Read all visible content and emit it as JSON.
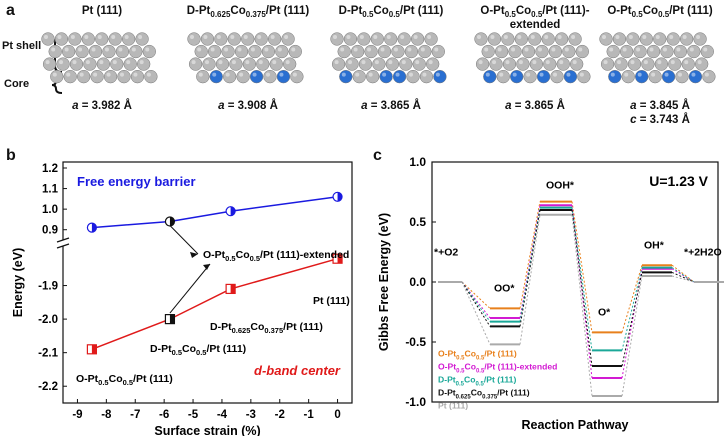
{
  "panels": {
    "a": "a",
    "b": "b",
    "c": "c"
  },
  "panel_a": {
    "shell_label": "Pt shell",
    "core_label": "Core",
    "colors": {
      "pt": "#b8b8b8",
      "co": "#2a6fd1"
    },
    "structures": [
      {
        "title": "Pt (111)",
        "lattice": [
          "a = 3.982 Å"
        ],
        "co_pattern": "none"
      },
      {
        "title": "D-Pt0.625Co0.375/Pt (111)",
        "lattice": [
          "a = 3.908 Å"
        ],
        "co_pattern": "sparse"
      },
      {
        "title": "D-Pt0.5Co0.5/Pt (111)",
        "lattice": [
          "a = 3.865 Å"
        ],
        "co_pattern": "half"
      },
      {
        "title": "O-Pt0.5Co0.5/Pt (111)-extended",
        "lattice": [
          "a = 3.865 Å"
        ],
        "co_pattern": "ordered"
      },
      {
        "title": "O-Pt0.5Co0.5/Pt (111)",
        "lattice": [
          "a = 3.845 Å",
          "c = 3.743 Å"
        ],
        "co_pattern": "ordered"
      }
    ]
  },
  "chart_data": [
    {
      "type": "scatter",
      "xlabel": "Surface strain (%)",
      "ylabel": "Energy (eV)",
      "xlim": [
        -9.5,
        0.5
      ],
      "xticks": [
        "-9",
        "-8",
        "-7",
        "-6",
        "-5",
        "-4",
        "-3",
        "-2",
        "-1",
        "0"
      ],
      "upper_yticks": [
        "0.9",
        "1.0",
        "1.1",
        "1.2"
      ],
      "lower_yticks": [
        "-2.2",
        "-2.1",
        "-2.0",
        "-1.9"
      ],
      "series": [
        {
          "name": "Free energy barrier",
          "color": "#1a1ae0",
          "x": [
            -8.5,
            -5.8,
            -3.7,
            0
          ],
          "y": [
            0.91,
            0.94,
            0.99,
            1.06
          ]
        },
        {
          "name": "d-band center",
          "color": "#e01a1a",
          "x": [
            -8.5,
            -5.8,
            -3.7,
            0
          ],
          "y": [
            -2.09,
            -2.0,
            -1.91,
            -1.82
          ]
        }
      ],
      "annotations": [
        "O-Pt0.5Co0.5/Pt (111)-extended",
        "Pt (111)",
        "D-Pt0.625Co0.375/Pt (111)",
        "D-Pt0.5Co0.5/Pt (111)",
        "O-Pt0.5Co0.5/Pt (111)"
      ],
      "legend_upper": "Free energy barrier",
      "legend_lower": "d-band center"
    },
    {
      "type": "line",
      "xlabel": "Reaction Pathway",
      "ylabel": "Gibbs Free Energy  (eV)",
      "ylim": [
        -1.0,
        1.0
      ],
      "yticks": [
        "-1.0",
        "-0.5",
        "0.0",
        "0.5",
        "1.0"
      ],
      "condition": "U=1.23 V",
      "steps": [
        "*+O2",
        "OO*",
        "OOH*",
        "O*",
        "OH*",
        "*+2H2O"
      ],
      "series": [
        {
          "name": "O-Pt0.5Co0.5/Pt (111)",
          "color": "#e8801c",
          "values": [
            0,
            -0.22,
            0.67,
            -0.42,
            0.14,
            0
          ]
        },
        {
          "name": "O-Pt0.5Co0.5/Pt (111)-extended",
          "color": "#d21ad2",
          "values": [
            0,
            -0.3,
            0.64,
            -0.8,
            0.11,
            0
          ]
        },
        {
          "name": "D-Pt0.5Co0.5/Pt (111)",
          "color": "#1aa898",
          "values": [
            0,
            -0.33,
            0.62,
            -0.57,
            0.12,
            0
          ]
        },
        {
          "name": "D-Pt0.625Co0.375/Pt (111)",
          "color": "#111111",
          "values": [
            0,
            -0.37,
            0.6,
            -0.7,
            0.08,
            0
          ]
        },
        {
          "name": "Pt (111)",
          "color": "#aaaaaa",
          "values": [
            0,
            -0.52,
            0.56,
            -0.95,
            0.05,
            0
          ]
        }
      ]
    }
  ]
}
